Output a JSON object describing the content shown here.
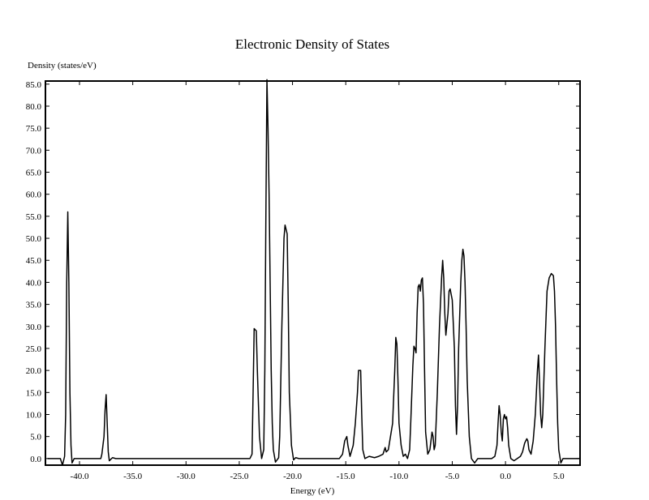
{
  "chart_data": {
    "type": "line",
    "title": "Electronic Density of States",
    "ylabel": "Density (states/eV)",
    "xlabel": "Energy (eV)",
    "xlim": [
      -43.2,
      7.0
    ],
    "ylim": [
      -1.5,
      85.7
    ],
    "grid": false,
    "legend": "none",
    "line_color": "#000000",
    "x_ticks": [
      -40.0,
      -35.0,
      -30.0,
      -25.0,
      -20.0,
      -15.0,
      -10.0,
      -5.0,
      0.0,
      5.0
    ],
    "x_tick_labels": [
      "-40.0",
      "-35.0",
      "-30.0",
      "-25.0",
      "-20.0",
      "-15.0",
      "-10.0",
      "-5.0",
      "0.0",
      "5.0"
    ],
    "y_ticks": [
      0,
      5,
      10,
      15,
      20,
      25,
      30,
      35,
      40,
      45,
      50,
      55,
      60,
      65,
      70,
      75,
      80,
      85
    ],
    "y_tick_labels": [
      "0.0",
      "5.0",
      "10.0",
      "15.0",
      "20.0",
      "25.0",
      "30.0",
      "35.0",
      "40.0",
      "45.0",
      "50.0",
      "55.0",
      "60.0",
      "65.0",
      "70.0",
      "75.0",
      "80.0",
      "85.0"
    ],
    "series": [
      {
        "points": [
          [
            -43.0,
            0.0
          ],
          [
            -41.8,
            0.0
          ],
          [
            -41.6,
            -1.5
          ],
          [
            -41.4,
            0.5
          ],
          [
            -41.3,
            10.0
          ],
          [
            -41.2,
            40.0
          ],
          [
            -41.1,
            56.0
          ],
          [
            -41.0,
            40.0
          ],
          [
            -40.9,
            15.0
          ],
          [
            -40.8,
            3.0
          ],
          [
            -40.7,
            -1.0
          ],
          [
            -40.5,
            0.0
          ],
          [
            -38.0,
            0.0
          ],
          [
            -37.9,
            1.0
          ],
          [
            -37.7,
            5.0
          ],
          [
            -37.6,
            11.0
          ],
          [
            -37.5,
            14.5
          ],
          [
            -37.4,
            8.0
          ],
          [
            -37.3,
            1.5
          ],
          [
            -37.2,
            -0.5
          ],
          [
            -36.9,
            0.2
          ],
          [
            -36.6,
            0.0
          ],
          [
            -24.0,
            0.0
          ],
          [
            -23.8,
            1.0
          ],
          [
            -23.7,
            15.0
          ],
          [
            -23.6,
            29.5
          ],
          [
            -23.4,
            29.0
          ],
          [
            -23.3,
            20.0
          ],
          [
            -23.1,
            5.0
          ],
          [
            -22.9,
            0.0
          ],
          [
            -22.7,
            2.0
          ],
          [
            -22.6,
            20.0
          ],
          [
            -22.5,
            55.0
          ],
          [
            -22.4,
            86.0
          ],
          [
            -22.3,
            75.0
          ],
          [
            -22.2,
            60.0
          ],
          [
            -22.1,
            40.0
          ],
          [
            -22.0,
            20.0
          ],
          [
            -21.9,
            8.0
          ],
          [
            -21.8,
            2.0
          ],
          [
            -21.6,
            -0.8
          ],
          [
            -21.3,
            0.2
          ],
          [
            -21.2,
            5.0
          ],
          [
            -21.0,
            30.0
          ],
          [
            -20.8,
            50.0
          ],
          [
            -20.7,
            53.0
          ],
          [
            -20.5,
            51.0
          ],
          [
            -20.4,
            35.0
          ],
          [
            -20.3,
            15.0
          ],
          [
            -20.1,
            3.0
          ],
          [
            -19.9,
            -0.3
          ],
          [
            -19.7,
            0.2
          ],
          [
            -19.4,
            0.0
          ],
          [
            -15.6,
            0.0
          ],
          [
            -15.3,
            1.0
          ],
          [
            -15.1,
            4.0
          ],
          [
            -14.9,
            5.0
          ],
          [
            -14.8,
            3.0
          ],
          [
            -14.6,
            0.5
          ],
          [
            -14.3,
            3.0
          ],
          [
            -14.1,
            8.0
          ],
          [
            -13.9,
            15.0
          ],
          [
            -13.8,
            20.0
          ],
          [
            -13.6,
            20.0
          ],
          [
            -13.5,
            10.0
          ],
          [
            -13.4,
            2.0
          ],
          [
            -13.2,
            0.0
          ],
          [
            -12.8,
            0.5
          ],
          [
            -12.3,
            0.2
          ],
          [
            -11.9,
            0.5
          ],
          [
            -11.5,
            1.0
          ],
          [
            -11.3,
            2.5
          ],
          [
            -11.2,
            1.5
          ],
          [
            -11.0,
            2.0
          ],
          [
            -10.8,
            5.0
          ],
          [
            -10.6,
            8.0
          ],
          [
            -10.4,
            20.0
          ],
          [
            -10.3,
            27.5
          ],
          [
            -10.2,
            26.0
          ],
          [
            -10.1,
            18.0
          ],
          [
            -10.0,
            8.0
          ],
          [
            -9.8,
            3.0
          ],
          [
            -9.6,
            0.5
          ],
          [
            -9.4,
            1.0
          ],
          [
            -9.2,
            0.0
          ],
          [
            -9.0,
            2.0
          ],
          [
            -8.9,
            8.0
          ],
          [
            -8.7,
            21.0
          ],
          [
            -8.6,
            25.5
          ],
          [
            -8.5,
            25.0
          ],
          [
            -8.4,
            24.0
          ],
          [
            -8.3,
            33.0
          ],
          [
            -8.2,
            39.0
          ],
          [
            -8.1,
            39.5
          ],
          [
            -8.0,
            38.0
          ],
          [
            -7.9,
            40.5
          ],
          [
            -7.8,
            41.0
          ],
          [
            -7.7,
            35.0
          ],
          [
            -7.6,
            20.0
          ],
          [
            -7.5,
            6.0
          ],
          [
            -7.3,
            1.0
          ],
          [
            -7.1,
            2.0
          ],
          [
            -6.9,
            6.0
          ],
          [
            -6.8,
            5.0
          ],
          [
            -6.7,
            2.0
          ],
          [
            -6.6,
            3.0
          ],
          [
            -6.4,
            15.0
          ],
          [
            -6.2,
            30.0
          ],
          [
            -6.0,
            41.0
          ],
          [
            -5.9,
            45.0
          ],
          [
            -5.8,
            41.0
          ],
          [
            -5.7,
            33.0
          ],
          [
            -5.6,
            28.0
          ],
          [
            -5.4,
            33.0
          ],
          [
            -5.3,
            38.0
          ],
          [
            -5.2,
            38.5
          ],
          [
            -5.0,
            36.0
          ],
          [
            -4.8,
            25.0
          ],
          [
            -4.7,
            12.0
          ],
          [
            -4.6,
            5.5
          ],
          [
            -4.5,
            12.0
          ],
          [
            -4.4,
            25.0
          ],
          [
            -4.2,
            40.0
          ],
          [
            -4.1,
            45.0
          ],
          [
            -4.0,
            47.5
          ],
          [
            -3.9,
            46.0
          ],
          [
            -3.8,
            40.0
          ],
          [
            -3.7,
            30.0
          ],
          [
            -3.6,
            18.0
          ],
          [
            -3.4,
            5.0
          ],
          [
            -3.2,
            0.0
          ],
          [
            -2.9,
            -1.0
          ],
          [
            -2.6,
            0.0
          ],
          [
            -1.3,
            0.0
          ],
          [
            -1.0,
            0.5
          ],
          [
            -0.8,
            3.0
          ],
          [
            -0.7,
            8.0
          ],
          [
            -0.6,
            12.0
          ],
          [
            -0.5,
            10.0
          ],
          [
            -0.4,
            6.0
          ],
          [
            -0.3,
            4.0
          ],
          [
            -0.2,
            9.0
          ],
          [
            -0.1,
            10.0
          ],
          [
            0.0,
            9.0
          ],
          [
            0.1,
            9.5
          ],
          [
            0.2,
            7.0
          ],
          [
            0.3,
            3.0
          ],
          [
            0.5,
            0.0
          ],
          [
            0.8,
            -0.5
          ],
          [
            1.1,
            0.0
          ],
          [
            1.4,
            0.5
          ],
          [
            1.6,
            1.5
          ],
          [
            1.8,
            3.5
          ],
          [
            2.0,
            4.5
          ],
          [
            2.1,
            4.0
          ],
          [
            2.2,
            2.0
          ],
          [
            2.4,
            1.0
          ],
          [
            2.6,
            4.0
          ],
          [
            2.8,
            10.0
          ],
          [
            3.0,
            20.0
          ],
          [
            3.1,
            23.5
          ],
          [
            3.2,
            17.0
          ],
          [
            3.3,
            10.0
          ],
          [
            3.4,
            7.0
          ],
          [
            3.5,
            10.0
          ],
          [
            3.7,
            25.0
          ],
          [
            3.9,
            38.0
          ],
          [
            4.1,
            41.0
          ],
          [
            4.3,
            42.0
          ],
          [
            4.5,
            41.5
          ],
          [
            4.6,
            38.0
          ],
          [
            4.7,
            30.0
          ],
          [
            4.8,
            18.0
          ],
          [
            4.9,
            8.0
          ],
          [
            5.0,
            2.0
          ],
          [
            5.2,
            -1.0
          ],
          [
            5.4,
            0.0
          ],
          [
            7.0,
            0.0
          ]
        ]
      }
    ]
  }
}
